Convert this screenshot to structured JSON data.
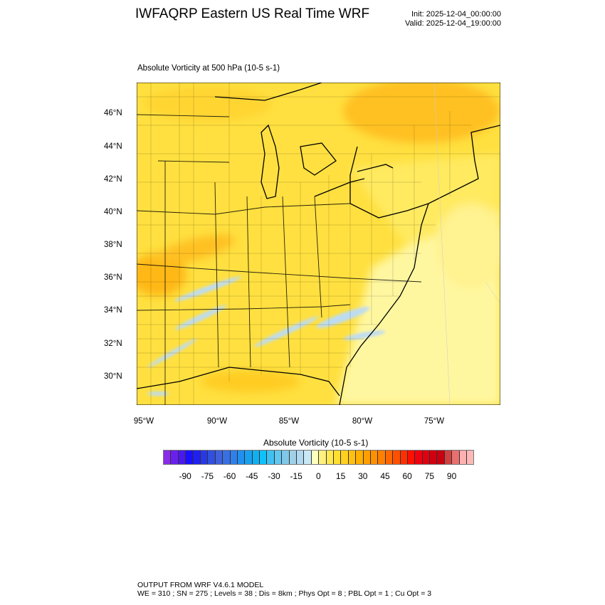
{
  "header": {
    "title": "IWFAQRP Eastern US Real Time WRF",
    "init": "Init: 2025-12-04_00:00:00",
    "valid": "Valid: 2025-12-04_19:00:00"
  },
  "plot": {
    "subtitle": "Absolute Vorticity at 500 hPa   (10-5 s-1)",
    "lat_labels": [
      "46°N",
      "44°N",
      "42°N",
      "40°N",
      "38°N",
      "36°N",
      "34°N",
      "32°N",
      "30°N"
    ],
    "lon_labels": [
      "95°W",
      "90°W",
      "85°W",
      "80°W",
      "75°W"
    ]
  },
  "colorbar": {
    "title": "Absolute Vorticity  (10-5 s-1)",
    "labels": [
      "-90",
      "-75",
      "-60",
      "-45",
      "-30",
      "-15",
      "0",
      "15",
      "30",
      "45",
      "60",
      "75",
      "90"
    ],
    "range": [
      -105,
      105
    ],
    "interval": 5,
    "colors": [
      "#8a2be8",
      "#6a20ec",
      "#4a18f0",
      "#1a10ff",
      "#2020f0",
      "#2838e8",
      "#3050e0",
      "#4060dc",
      "#3870e4",
      "#3080ec",
      "#2090f0",
      "#18a0f0",
      "#10b0f0",
      "#10c0f8",
      "#40c0f0",
      "#60c8f0",
      "#80c8e8",
      "#a0d0e8",
      "#b0d8f0",
      "#c8e8f8",
      "#ffffc0",
      "#fff080",
      "#ffe850",
      "#ffe030",
      "#ffd020",
      "#ffc010",
      "#ffb000",
      "#ffa000",
      "#ff9000",
      "#ff8000",
      "#ff6800",
      "#ff5000",
      "#ff3000",
      "#ff1000",
      "#f00010",
      "#e00010",
      "#d00010",
      "#c80010",
      "#d04040",
      "#e87070",
      "#ffb0b0",
      "#ffb8b8"
    ]
  },
  "footer": {
    "line1": "OUTPUT FROM WRF V4.6.1 MODEL",
    "line2": "WE = 310 ; SN = 275 ; Levels = 38 ; Dis = 8km ; Phys Opt = 8 ; PBL Opt = 1 ; Cu Opt = 3"
  }
}
